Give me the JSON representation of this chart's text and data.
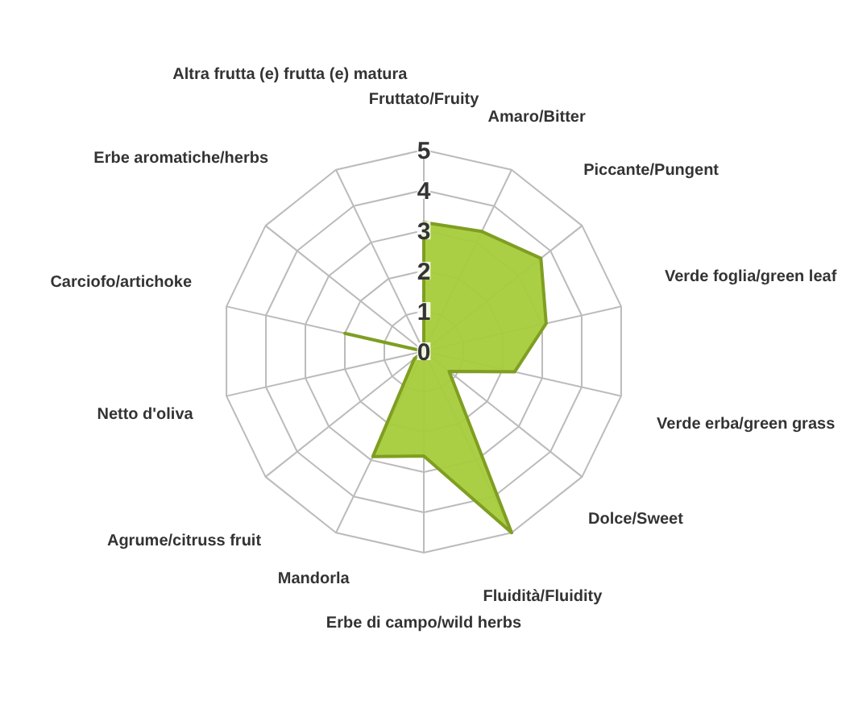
{
  "chart_data": {
    "type": "radar",
    "categories": [
      "Fruttato/Fruity",
      "Amaro/Bitter",
      "Piccante/Pungent",
      "Verde foglia/green leaf",
      "Verde erba/green grass",
      "Dolce/Sweet",
      "Fluidità/Fluidity",
      "Erbe di campo/wild herbs",
      "Mandorla",
      "Agrume/citruss fruit",
      "Netto d'oliva",
      "Carciofo/artichoke",
      "Erbe aromatiche/herbs",
      "Altra frutta (e) frutta (e) matura"
    ],
    "series": [
      {
        "color": "#a6cc3a",
        "values": [
          3.2,
          3.3,
          3.7,
          3.1,
          2.3,
          0.8,
          5.0,
          2.6,
          2.9,
          0.3,
          0,
          2.0,
          0,
          0
        ]
      }
    ],
    "ylim": [
      0,
      5
    ],
    "yticks": [
      0,
      1,
      2,
      3,
      4,
      5
    ],
    "grid": true
  }
}
